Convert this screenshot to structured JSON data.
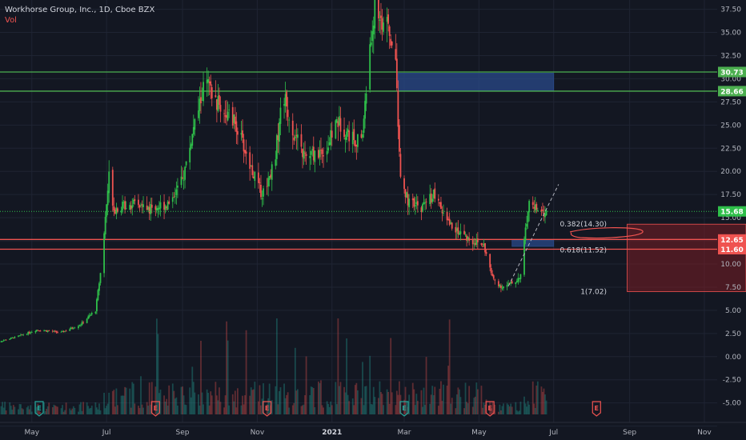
{
  "header": {
    "symbol_line": "Workhorse Group, Inc., 1D, Cboe BZX",
    "indicator": "Vol"
  },
  "colors": {
    "background": "#131722",
    "grid": "#1f2433",
    "up": "#26a69a",
    "candle_green": "#2fbf4a",
    "down": "#ef5350",
    "level_green": "#4caf50",
    "level_red": "#ef5350",
    "zone_blue": "#2a4a8a",
    "zone_red": "#7a1e24",
    "axis_text": "#b2b5be"
  },
  "chart_data": {
    "type": "candlestick",
    "title": "Workhorse Group, Inc., 1D, Cboe BZX",
    "x_ticks": [
      "May",
      "Jul",
      "Sep",
      "Nov",
      "2021",
      "Mar",
      "May",
      "Jul",
      "Sep",
      "Nov"
    ],
    "y_ticks": [
      -7.5,
      -5.0,
      -2.5,
      0.0,
      2.5,
      5.0,
      7.5,
      10.0,
      12.5,
      15.0,
      17.5,
      20.0,
      22.5,
      25.0,
      27.5,
      30.0,
      32.5,
      35.0,
      37.5
    ],
    "y_tick_labels": [
      "-7.50",
      "-5.00",
      "-2.50",
      "0.00",
      "2.50",
      "5.00",
      "7.50",
      "10.00",
      "12.50",
      "15.00",
      "17.50",
      "20.00",
      "22.50",
      "25.00",
      "27.50",
      "30.00",
      "32.50",
      "35.00",
      "37.50"
    ],
    "ylim": [
      -9.0,
      38.5
    ],
    "x_range": [
      "2020-04-05",
      "2021-12-05"
    ],
    "price_path": [
      [
        "2020-04-01",
        1.5
      ],
      [
        "2020-04-20",
        2.2
      ],
      [
        "2020-05-05",
        2.9
      ],
      [
        "2020-05-25",
        2.6
      ],
      [
        "2020-06-10",
        3.5
      ],
      [
        "2020-06-22",
        5.0
      ],
      [
        "2020-06-26",
        9.0
      ],
      [
        "2020-06-30",
        15.0
      ],
      [
        "2020-07-03",
        19.5
      ],
      [
        "2020-07-07",
        16.0
      ],
      [
        "2020-07-20",
        16.5
      ],
      [
        "2020-08-05",
        16.0
      ],
      [
        "2020-08-20",
        16.5
      ],
      [
        "2020-09-01",
        19.0
      ],
      [
        "2020-09-10",
        24.5
      ],
      [
        "2020-09-20",
        30.0
      ],
      [
        "2020-09-25",
        28.0
      ],
      [
        "2020-10-05",
        26.5
      ],
      [
        "2020-10-15",
        25.0
      ],
      [
        "2020-10-25",
        21.0
      ],
      [
        "2020-11-05",
        17.5
      ],
      [
        "2020-11-15",
        21.0
      ],
      [
        "2020-11-22",
        28.5
      ],
      [
        "2020-12-01",
        24.0
      ],
      [
        "2020-12-10",
        21.5
      ],
      [
        "2020-12-20",
        22.0
      ],
      [
        "2020-12-28",
        22.5
      ],
      [
        "2021-01-05",
        25.5
      ],
      [
        "2021-01-15",
        24.0
      ],
      [
        "2021-01-25",
        23.0
      ],
      [
        "2021-02-01",
        33.0
      ],
      [
        "2021-02-05",
        38.0
      ],
      [
        "2021-02-10",
        36.5
      ],
      [
        "2021-02-15",
        35.5
      ],
      [
        "2021-02-22",
        32.0
      ],
      [
        "2021-02-26",
        19.0
      ],
      [
        "2021-03-05",
        16.5
      ],
      [
        "2021-03-15",
        16.0
      ],
      [
        "2021-03-25",
        17.5
      ],
      [
        "2021-04-05",
        14.5
      ],
      [
        "2021-04-15",
        13.5
      ],
      [
        "2021-04-25",
        12.5
      ],
      [
        "2021-05-05",
        12.0
      ],
      [
        "2021-05-12",
        8.5
      ],
      [
        "2021-05-20",
        7.5
      ],
      [
        "2021-05-30",
        8.0
      ],
      [
        "2021-06-05",
        9.0
      ],
      [
        "2021-06-08",
        14.0
      ],
      [
        "2021-06-12",
        17.0
      ],
      [
        "2021-06-18",
        15.5
      ],
      [
        "2021-06-25",
        15.5
      ]
    ],
    "horizontal_levels": [
      {
        "price": 30.73,
        "label": "30.73",
        "color": "green"
      },
      {
        "price": 28.66,
        "label": "28.66",
        "color": "green"
      },
      {
        "price": 12.65,
        "label": "12.65",
        "color": "red"
      },
      {
        "price": 11.6,
        "label": "11.60",
        "color": "red"
      }
    ],
    "current_price": {
      "price": 15.68,
      "label": "15.68"
    },
    "fib_labels": [
      {
        "text": "0.382(14.30)",
        "price": 14.3
      },
      {
        "text": "0.618(11.52)",
        "price": 11.52
      },
      {
        "text": "1(7.02)",
        "price": 7.02
      }
    ],
    "zones": [
      {
        "kind": "supply",
        "from_date": "2021-02-24",
        "to_date": "2021-07-01",
        "top": 30.6,
        "bottom": 28.7
      },
      {
        "kind": "demand",
        "from_date": "2021-05-28",
        "to_date": "2021-07-01",
        "top": 12.6,
        "bottom": 11.9
      },
      {
        "kind": "target",
        "from_date": "2021-08-30",
        "to_date": "2021-12-05",
        "top": 14.3,
        "bottom": 7.02
      }
    ],
    "trendline": [
      [
        "2021-05-25",
        7.6
      ],
      [
        "2021-07-05",
        18.6
      ]
    ],
    "earnings_markers": [
      {
        "date": "2020-05-07",
        "label": "E",
        "color": "green"
      },
      {
        "date": "2020-08-10",
        "label": "E",
        "color": "red"
      },
      {
        "date": "2020-11-09",
        "label": "E",
        "color": "red"
      },
      {
        "date": "2021-03-01",
        "label": "E",
        "color": "green"
      },
      {
        "date": "2021-05-10",
        "label": "E",
        "color": "red"
      },
      {
        "date": "2021-08-05",
        "label": "E",
        "color": "red"
      }
    ]
  }
}
